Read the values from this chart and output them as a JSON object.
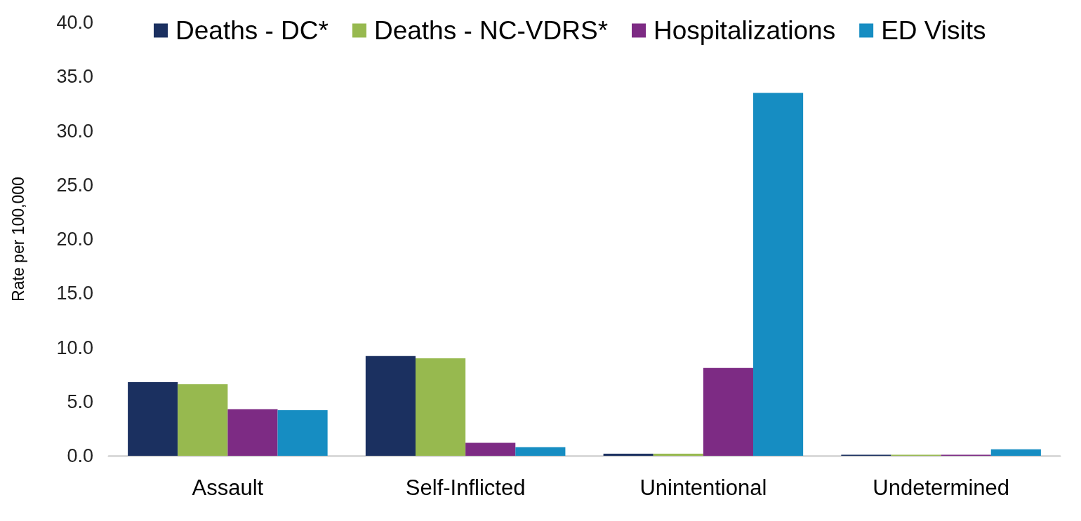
{
  "chart_data": {
    "type": "bar",
    "ylabel": "Rate per 100,000",
    "categories": [
      "Assault",
      "Self-Inflicted",
      "Unintentional",
      "Undetermined"
    ],
    "series": [
      {
        "name": "Deaths - DC*",
        "color": "#1b3060",
        "values": [
          6.8,
          9.2,
          0.2,
          0.1
        ]
      },
      {
        "name": "Deaths - NC-VDRS*",
        "color": "#97b94f",
        "values": [
          6.6,
          9.0,
          0.2,
          0.1
        ]
      },
      {
        "name": "Hospitalizations",
        "color": "#7d2b84",
        "values": [
          4.3,
          1.2,
          8.1,
          0.1
        ]
      },
      {
        "name": "ED Visits",
        "color": "#168dc2",
        "values": [
          4.2,
          0.8,
          33.5,
          0.6
        ]
      }
    ],
    "ylim": [
      0,
      40
    ],
    "yticks": [
      {
        "value": 0,
        "label": "0.0"
      },
      {
        "value": 5,
        "label": "5.0"
      },
      {
        "value": 10,
        "label": "10.0"
      },
      {
        "value": 15,
        "label": "15.0"
      },
      {
        "value": 20,
        "label": "20.0"
      },
      {
        "value": 25,
        "label": "25.0"
      },
      {
        "value": 30,
        "label": "30.0"
      },
      {
        "value": 35,
        "label": "35.0"
      },
      {
        "value": 40,
        "label": "40.0"
      }
    ],
    "grid": false,
    "legend": "top"
  }
}
